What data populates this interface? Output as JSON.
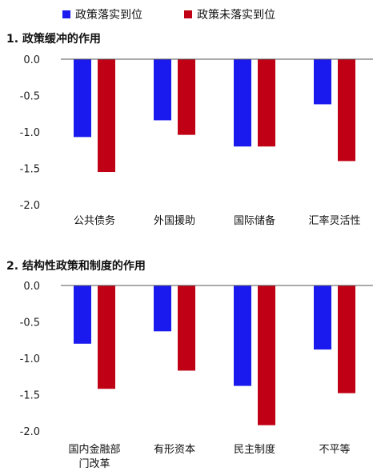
{
  "legend": {
    "items": [
      {
        "label": "政策落实到位",
        "color": "#1a1aee"
      },
      {
        "label": "政策未落实到位",
        "color": "#c00014"
      }
    ]
  },
  "chart_data": [
    {
      "type": "bar",
      "title": "1. 政策缓冲的作用",
      "categories": [
        "公共债务",
        "外国援助",
        "国际储备",
        "汇率灵活性"
      ],
      "series": [
        {
          "name": "政策落实到位",
          "values": [
            -1.07,
            -0.84,
            -1.2,
            -0.62
          ]
        },
        {
          "name": "政策未落实到位",
          "values": [
            -1.55,
            -1.04,
            -1.2,
            -1.4
          ]
        }
      ],
      "ylim": [
        -2.0,
        0.0
      ],
      "yticks": [
        "0.0",
        "-0.5",
        "-1.0",
        "-1.5",
        "-2.0"
      ],
      "grid": false,
      "legend": "top"
    },
    {
      "type": "bar",
      "title": "2. 结构性政策和制度的作用",
      "categories": [
        "国内金融部门改革",
        "有形资本",
        "民主制度",
        "不平等"
      ],
      "series": [
        {
          "name": "政策落实到位",
          "values": [
            -0.8,
            -0.63,
            -1.38,
            -0.88
          ]
        },
        {
          "name": "政策未落实到位",
          "values": [
            -1.42,
            -1.17,
            -1.92,
            -1.48
          ]
        }
      ],
      "ylim": [
        -2.0,
        0.0
      ],
      "yticks": [
        "0.0",
        "-0.5",
        "-1.0",
        "-1.5",
        "-2.0"
      ],
      "grid": false,
      "legend": "top"
    }
  ]
}
